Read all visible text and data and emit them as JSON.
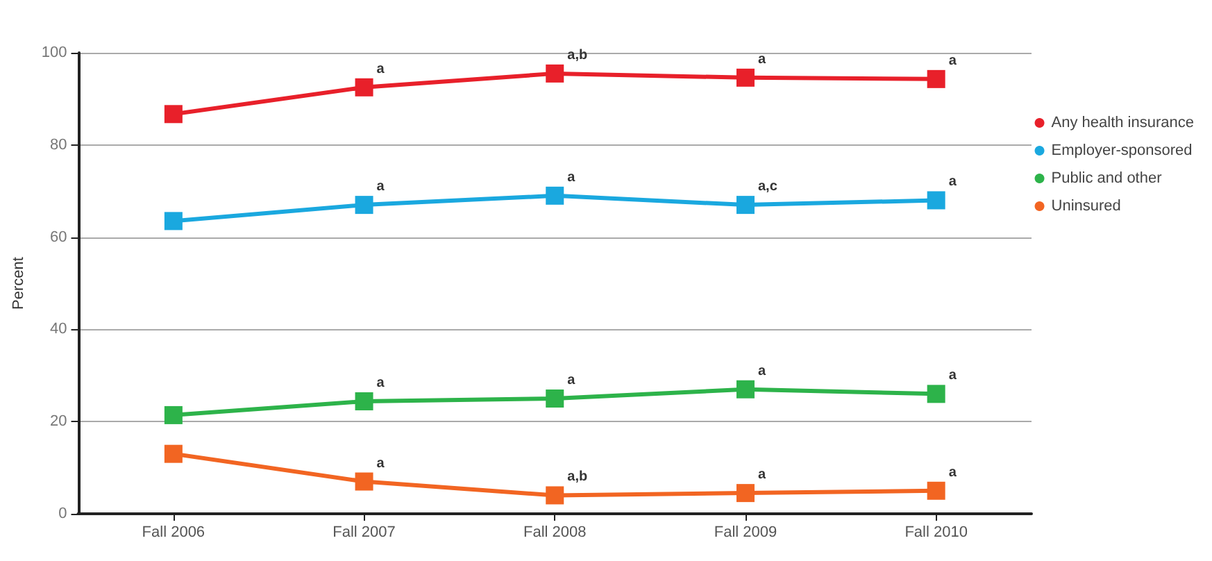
{
  "chart_data": {
    "type": "line",
    "ylabel": "Percent",
    "categories": [
      "Fall 2006",
      "Fall 2007",
      "Fall 2008",
      "Fall 2009",
      "Fall 2010"
    ],
    "series": [
      {
        "name": "Any health insurance",
        "color": "#e8202a",
        "values": [
          86.7,
          92.5,
          95.5,
          94.6,
          94.3
        ]
      },
      {
        "name": "Employer-sponsored",
        "color": "#1aa8df",
        "values": [
          63.5,
          67,
          69,
          67,
          68
        ]
      },
      {
        "name": "Public and other",
        "color": "#2db34a",
        "values": [
          21.4,
          24.4,
          25,
          27,
          26
        ]
      },
      {
        "name": "Uninsured",
        "color": "#f26522",
        "values": [
          13,
          7,
          4,
          4.5,
          5
        ]
      }
    ],
    "ylim": [
      0,
      100
    ],
    "yticks": [
      0,
      20,
      40,
      60,
      80,
      100
    ],
    "grid": "y",
    "legend": "top right",
    "marker": "square",
    "line_style": "solid",
    "annotations": [
      {
        "text": "a",
        "x": "Fall 2007",
        "y": 92.5
      },
      {
        "text": "a,b",
        "x": "Fall 2008",
        "y": 95.5
      },
      {
        "text": "a",
        "x": "Fall 2009",
        "y": 94.6
      },
      {
        "text": "a",
        "x": "Fall 2010",
        "y": 94.3
      },
      {
        "text": "a",
        "x": "Fall 2007",
        "y": 67
      },
      {
        "text": "a",
        "x": "Fall 2008",
        "y": 69
      },
      {
        "text": "a,c",
        "x": "Fall 2009",
        "y": 67
      },
      {
        "text": "a",
        "x": "Fall 2010",
        "y": 68
      },
      {
        "text": "a",
        "x": "Fall 2007",
        "y": 24.4
      },
      {
        "text": "a",
        "x": "Fall 2008",
        "y": 25
      },
      {
        "text": "a",
        "x": "Fall 2009",
        "y": 27
      },
      {
        "text": "a",
        "x": "Fall 2010",
        "y": 26
      },
      {
        "text": "a",
        "x": "Fall 2007",
        "y": 7
      },
      {
        "text": "a,b",
        "x": "Fall 2008",
        "y": 4
      },
      {
        "text": "a",
        "x": "Fall 2009",
        "y": 4.5
      },
      {
        "text": "a",
        "x": "Fall 2010",
        "y": 5
      }
    ]
  }
}
